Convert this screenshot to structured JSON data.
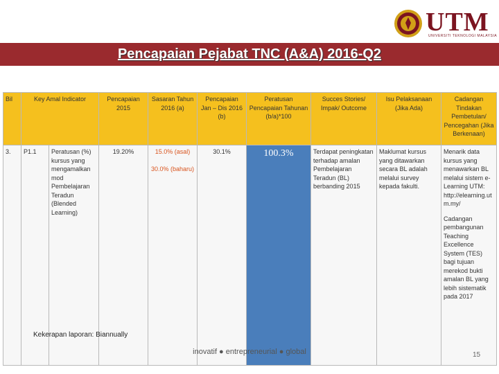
{
  "header": {
    "logo_text": "UTM",
    "logo_sub": "UNIVERSITI TEKNOLOGI MALAYSIA",
    "title": "Pencapaian Pejabat TNC (A&A) 2016-Q2"
  },
  "table": {
    "headers": {
      "bil": "Bil",
      "kai": "Key Amal Indicator",
      "p2015": "Pencapaian 2015",
      "sasaran": "Sasaran Tahun 2016 (a)",
      "pjan": "Pencapaian Jan – Dis 2016 (b)",
      "peratusan": "Peratusan Pencapaian Tahunan (b/a)*100",
      "success": "Succes Stories/ Impak/ Outcome",
      "isu": "Isu Pelaksanaan (Jika Ada)",
      "cadangan": "Cadangan Tindakan Pembetulan/ Pencegahan (Jika Berkenaan)"
    },
    "row": {
      "bil": "3.",
      "code": "P1.1",
      "kai_desc": "Peratusan (%) kursus yang mengamalkan mod Pembelajaran Teradun (Blended Learning)",
      "p2015": "19.20%",
      "sasaran_asal": "15.0% (asal)",
      "sasaran_baharu": "30.0% (baharu)",
      "pjan": "30.1%",
      "peratusan": "100.3%",
      "success": "Terdapat peningkatan terhadap amalan Pembelajaran Teradun (BL) berbanding 2015",
      "isu": "Maklumat kursus yang ditawarkan secara BL adalah melalui survey kepada fakulti.",
      "cadangan_1": "Menarik data kursus yang menawarkan BL melalui sistem e-Learning UTM: http://elearning.utm.my/",
      "cadangan_2": "Cadangan pembangunan Teaching Excellence System (TES) bagi tujuan merekod bukti amalan BL yang lebih sistematik pada 2017"
    }
  },
  "footer": {
    "note": "Kekerapan laporan: Biannually",
    "tagline": "inovatif ● entrepreneurial ● global",
    "page_number": "15"
  },
  "colors": {
    "title_bar": "#9a2a2e",
    "header_row": "#f5c01e",
    "highlight_cell": "#4a7ebb",
    "logo": "#7b1420"
  }
}
